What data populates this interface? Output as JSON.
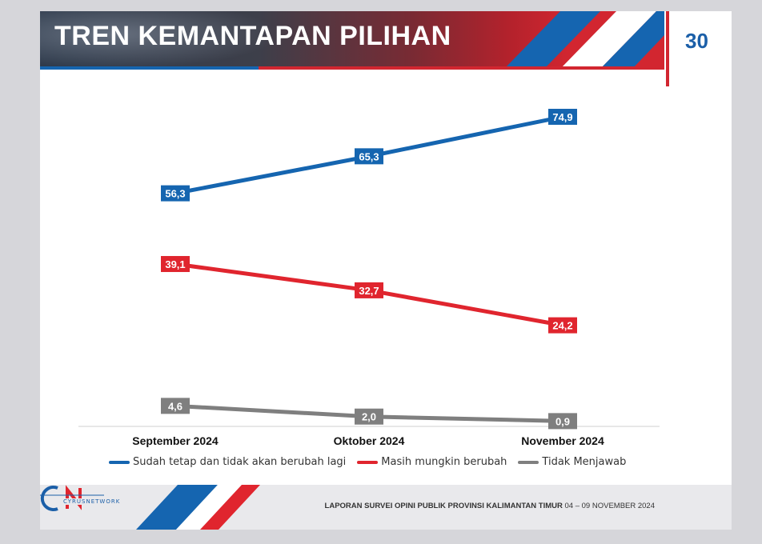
{
  "header": {
    "title": "TREN KEMANTAPAN PILIHAN",
    "page_number": "30"
  },
  "chart_data": {
    "type": "line",
    "categories": [
      "September 2024",
      "Oktober 2024",
      "November 2024"
    ],
    "series": [
      {
        "name": "Sudah tetap dan tidak akan berubah lagi",
        "color": "#1565b0",
        "values": [
          56.3,
          65.3,
          74.9
        ],
        "labels": [
          "56,3",
          "65,3",
          "74,9"
        ]
      },
      {
        "name": "Masih mungkin berubah",
        "color": "#e0252e",
        "values": [
          39.1,
          32.7,
          24.2
        ],
        "labels": [
          "39,1",
          "32,7",
          "24,2"
        ]
      },
      {
        "name": "Tidak Menjawab",
        "color": "#7f7f7f",
        "values": [
          4.6,
          2.0,
          0.9
        ],
        "labels": [
          "4,6",
          "2,0",
          "0,9"
        ]
      }
    ],
    "ylim": [
      0,
      80
    ],
    "grid": false,
    "legend": "bottom"
  },
  "footer": {
    "logo_text": "CYRUSNETWORK",
    "report_title": "LAPORAN SURVEI OPINI PUBLIK PROVINSI KALIMANTAN TIMUR",
    "date_range": "04 – 09 NOVEMBER 2024"
  }
}
